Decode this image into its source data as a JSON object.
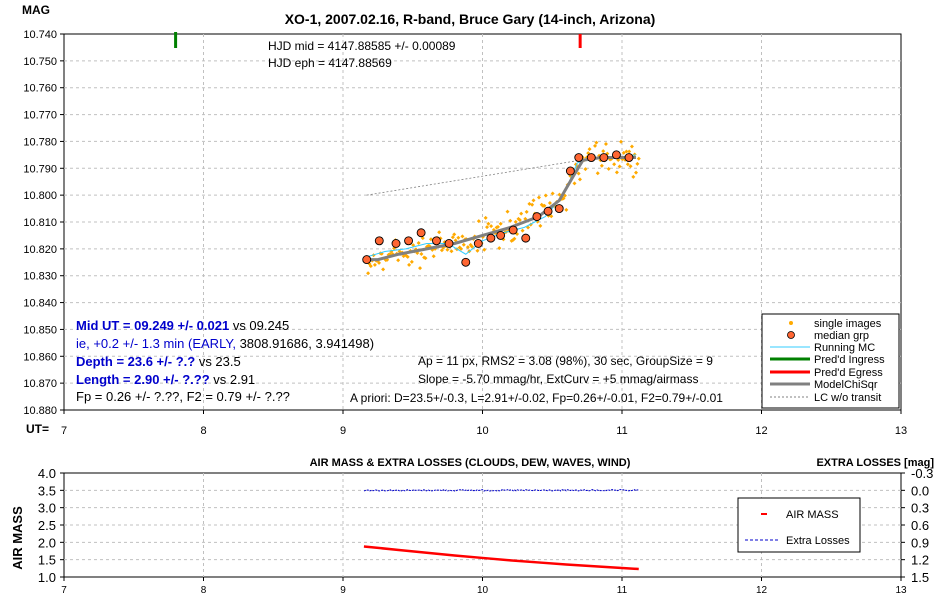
{
  "chart_data": [
    {
      "type": "scatter",
      "title": "XO-1, 2007.02.16, R-band, Bruce Gary (14-inch, Arizona)",
      "ylabel": "MAG",
      "xlabel": "UT=",
      "xlim": [
        7,
        13
      ],
      "ylim": [
        10.74,
        10.88
      ],
      "y_inverted": true,
      "xticks": [
        "7",
        "8",
        "9",
        "10",
        "11",
        "12",
        "13"
      ],
      "yticks": [
        "10.740",
        "10.750",
        "10.760",
        "10.770",
        "10.780",
        "10.790",
        "10.800",
        "10.810",
        "10.820",
        "10.830",
        "10.840",
        "10.850",
        "10.860",
        "10.870",
        "10.880"
      ],
      "grid": true,
      "legend_position": "bottom-right",
      "legend": [
        "single images",
        "median grp",
        "Running MC",
        "Pred'd Ingress",
        "Pred'd Egress",
        "ModelChiSqr",
        "LC w/o transit"
      ],
      "annotations": {
        "hjd_mid": "HJD mid = 4147.88585 +/- 0.00089",
        "hjd_eph": "HJD eph = 4147.88569",
        "mid_ut_bold": "Mid UT = 09.249 +/- 0.021",
        "mid_ut_vs": " vs 09.245",
        "ie_line": "ie, +0.2 +/- 1.3 min (EARLY, ",
        "ie_line2": "3808.91686, 3.941498)",
        "depth_bold": "Depth = 23.6 +/- ?.?",
        "depth_vs": " vs 23.5",
        "length_bold": "Length = 2.90 +/- ?.??",
        "length_vs": " vs 2.91",
        "fp_line": "Fp = 0.26 +/- ?.??, F2 = 0.79 +/- ?.??",
        "ap_line": "Ap = 11 px, RMS2 = 3.08 (98%), 30 sec, GroupSize = 9",
        "slope_line": "Slope = -5.70 mmag/hr, ExtCurv = +5 mmag/airmass",
        "apriori_line": "A priori: D=23.5+/-0.3, L=2.91+/-0.02, Fp=0.26+/-0.01, F2=0.79+/-0.01"
      },
      "ingress_ut": 7.8,
      "egress_ut": 10.7,
      "median_grp": {
        "x": [
          9.17,
          9.26,
          9.38,
          9.47,
          9.56,
          9.67,
          9.76,
          9.88,
          9.97,
          10.06,
          10.13,
          10.22,
          10.31,
          10.39,
          10.47,
          10.55,
          10.63,
          10.69,
          10.78,
          10.87,
          10.96,
          11.05
        ],
        "y": [
          10.824,
          10.817,
          10.818,
          10.817,
          10.814,
          10.817,
          10.818,
          10.825,
          10.818,
          10.816,
          10.815,
          10.813,
          10.816,
          10.808,
          10.806,
          10.805,
          10.791,
          10.786,
          10.786,
          10.786,
          10.785,
          10.786
        ]
      },
      "model": {
        "x": [
          9.17,
          9.25,
          9.4,
          9.6,
          9.8,
          10.0,
          10.2,
          10.4,
          10.55,
          10.65,
          10.72,
          10.85,
          11.0,
          11.1
        ],
        "y": [
          10.824,
          10.824,
          10.822,
          10.82,
          10.818,
          10.815,
          10.812,
          10.808,
          10.802,
          10.793,
          10.787,
          10.786,
          10.786,
          10.786
        ]
      },
      "running_mc": {
        "x": [
          9.17,
          9.3,
          9.45,
          9.6,
          9.75,
          9.88,
          10.0,
          10.15,
          10.3,
          10.45,
          10.58,
          10.68,
          10.8,
          10.95,
          11.1
        ],
        "y": [
          10.823,
          10.821,
          10.82,
          10.818,
          10.818,
          10.822,
          10.817,
          10.814,
          10.812,
          10.808,
          10.8,
          10.788,
          10.786,
          10.786,
          10.785
        ]
      },
      "lc_without_transit": {
        "x": [
          9.17,
          10.7
        ],
        "y": [
          10.8,
          10.787
        ]
      }
    },
    {
      "type": "line",
      "title": "AIR MASS & EXTRA LOSSES (CLOUDS, DEW, WAVES, WIND)",
      "ylabel": "AIR MASS",
      "y2label": "EXTRA LOSSES [mag]",
      "xlim": [
        7,
        13
      ],
      "ylim": [
        1.0,
        4.0
      ],
      "y2lim": [
        -0.3,
        1.5
      ],
      "y2_inverted": true,
      "xticks": [
        "7",
        "8",
        "9",
        "10",
        "11",
        "12",
        "13"
      ],
      "yticks": [
        "4.0",
        "3.5",
        "3.0",
        "2.5",
        "2.0",
        "1.5",
        "1.0"
      ],
      "y2ticks": [
        "-0.3",
        "0.0",
        "0.3",
        "0.6",
        "0.9",
        "1.2",
        "1.5"
      ],
      "grid": true,
      "legend_position": "right",
      "series": [
        {
          "name": "AIR MASS",
          "color": "#ff0000",
          "x": [
            9.15,
            9.4,
            9.6,
            9.8,
            10.0,
            10.2,
            10.4,
            10.6,
            10.8,
            11.0,
            11.12
          ],
          "y": [
            1.88,
            1.78,
            1.7,
            1.62,
            1.55,
            1.48,
            1.42,
            1.36,
            1.31,
            1.26,
            1.23
          ]
        },
        {
          "name": "Extra Losses",
          "color": "#0000cc",
          "x": [
            9.15,
            11.12
          ],
          "y": [
            0.0,
            0.0
          ]
        }
      ]
    }
  ],
  "colors": {
    "single": "#ffaa00",
    "median_fill": "#ff6633",
    "running": "#33ccff",
    "ingress": "#008000",
    "egress": "#ff0000",
    "model": "#808080",
    "legend_ingress": "#008000",
    "legend_egress": "#ff0000",
    "blue_text": "#0000cc"
  }
}
